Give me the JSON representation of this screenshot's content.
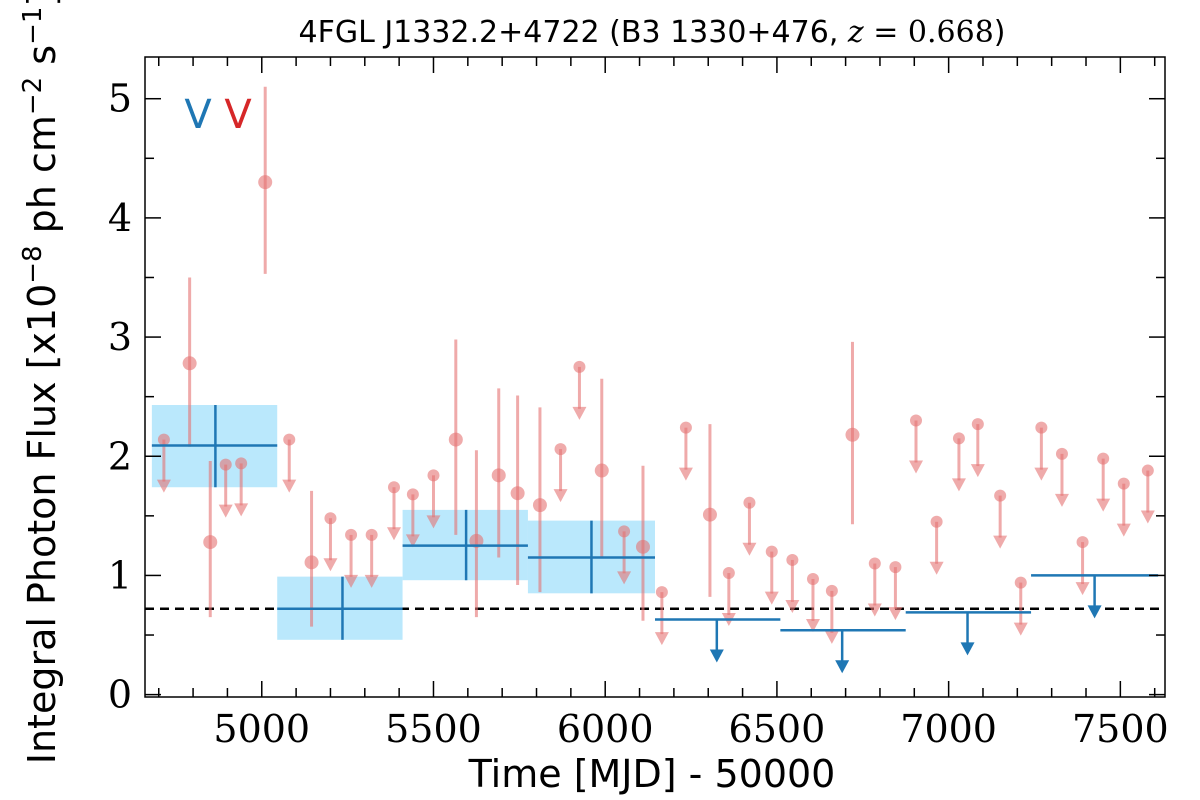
{
  "chart_data": {
    "type": "scatter",
    "title": "4FGL J1332.2+4722 (B3 1330+476, z = 0.668)",
    "title_parts": {
      "main": "4FGL J1332.2+4722 (B3 1330+476, ",
      "z_var": "z",
      "z_eq": " = 0.668",
      "close": ")"
    },
    "xlabel": "Time [MJD] - 50000",
    "ylabel": "Integral Photon Flux [x10",
    "ylabel_sup1": "−8",
    "ylabel_mid": " ph cm",
    "ylabel_sup2": "−2",
    "ylabel_end": " s",
    "ylabel_sup3": "−1",
    "ylabel_close": "]",
    "xlim": [
      4660,
      7630
    ],
    "ylim": [
      -0.02,
      5.35
    ],
    "xticks": [
      5000,
      5500,
      6000,
      6500,
      7000,
      7500
    ],
    "yticks": [
      0,
      1,
      2,
      3,
      4,
      5
    ],
    "grid": false,
    "legend": {
      "placement": "top-left",
      "entries": [
        {
          "label": "V",
          "color": "#1f77b4"
        },
        {
          "label": "V",
          "color": "#d62728"
        }
      ]
    },
    "reference_line": {
      "y": 0.72,
      "style": "dashed",
      "color": "#000000"
    },
    "colors": {
      "short_bin": "#e57373",
      "long_bin": "#1f77b4",
      "long_band": "#b3e5fc"
    },
    "series": [
      {
        "role": "short-bin detections",
        "points": [
          {
            "x": 4790,
            "y": 2.78,
            "yerr": [
              2.08,
              3.5
            ]
          },
          {
            "x": 4850,
            "y": 1.28,
            "yerr": [
              0.65,
              1.96
            ]
          },
          {
            "x": 5010,
            "y": 4.3,
            "yerr": [
              3.53,
              5.1
            ]
          },
          {
            "x": 5145,
            "y": 1.11,
            "yerr": [
              0.57,
              1.71
            ]
          },
          {
            "x": 5565,
            "y": 2.14,
            "yerr": [
              1.34,
              2.98
            ]
          },
          {
            "x": 5625,
            "y": 1.29,
            "yerr": [
              0.65,
              2.05
            ]
          },
          {
            "x": 5690,
            "y": 1.84,
            "yerr": [
              1.15,
              2.57
            ]
          },
          {
            "x": 5745,
            "y": 1.69,
            "yerr": [
              0.92,
              2.51
            ]
          },
          {
            "x": 5810,
            "y": 1.59,
            "yerr": [
              0.86,
              2.41
            ]
          },
          {
            "x": 5990,
            "y": 1.88,
            "yerr": [
              1.15,
              2.65
            ]
          },
          {
            "x": 6110,
            "y": 1.24,
            "yerr": [
              0.62,
              1.92
            ]
          },
          {
            "x": 6305,
            "y": 1.51,
            "yerr": [
              0.82,
              2.27
            ]
          },
          {
            "x": 6720,
            "y": 2.18,
            "yerr": [
              1.43,
              2.96
            ]
          }
        ]
      },
      {
        "role": "short-bin upper limits",
        "points": [
          {
            "x": 4715,
            "y": 2.14
          },
          {
            "x": 4895,
            "y": 1.93
          },
          {
            "x": 4940,
            "y": 1.94
          },
          {
            "x": 5080,
            "y": 2.14
          },
          {
            "x": 5200,
            "y": 1.48
          },
          {
            "x": 5260,
            "y": 1.34
          },
          {
            "x": 5320,
            "y": 1.34
          },
          {
            "x": 5385,
            "y": 1.74
          },
          {
            "x": 5440,
            "y": 1.68
          },
          {
            "x": 5500,
            "y": 1.84
          },
          {
            "x": 5870,
            "y": 2.06
          },
          {
            "x": 5925,
            "y": 2.75
          },
          {
            "x": 6055,
            "y": 1.37
          },
          {
            "x": 6165,
            "y": 0.86
          },
          {
            "x": 6235,
            "y": 2.24
          },
          {
            "x": 6360,
            "y": 1.02
          },
          {
            "x": 6420,
            "y": 1.61
          },
          {
            "x": 6485,
            "y": 1.2
          },
          {
            "x": 6545,
            "y": 1.13
          },
          {
            "x": 6605,
            "y": 0.97
          },
          {
            "x": 6660,
            "y": 0.87
          },
          {
            "x": 6785,
            "y": 1.1
          },
          {
            "x": 6845,
            "y": 1.07
          },
          {
            "x": 6905,
            "y": 2.3
          },
          {
            "x": 6965,
            "y": 1.45
          },
          {
            "x": 7030,
            "y": 2.15
          },
          {
            "x": 7085,
            "y": 2.27
          },
          {
            "x": 7150,
            "y": 1.67
          },
          {
            "x": 7210,
            "y": 0.94
          },
          {
            "x": 7270,
            "y": 2.24
          },
          {
            "x": 7330,
            "y": 2.02
          },
          {
            "x": 7390,
            "y": 1.28
          },
          {
            "x": 7450,
            "y": 1.98
          },
          {
            "x": 7510,
            "y": 1.77
          },
          {
            "x": 7580,
            "y": 1.88
          }
        ]
      },
      {
        "role": "long-bin detections",
        "points": [
          {
            "x": 4865,
            "xerr": [
              4680,
              5045
            ],
            "y": 2.09,
            "yerr": [
              1.74,
              2.43
            ]
          },
          {
            "x": 5235,
            "xerr": [
              5045,
              5410
            ],
            "y": 0.72,
            "yerr": [
              0.46,
              0.99
            ]
          },
          {
            "x": 5595,
            "xerr": [
              5410,
              5775
            ],
            "y": 1.25,
            "yerr": [
              0.96,
              1.55
            ]
          },
          {
            "x": 5960,
            "xerr": [
              5775,
              6145
            ],
            "y": 1.15,
            "yerr": [
              0.85,
              1.46
            ]
          }
        ]
      },
      {
        "role": "long-bin upper limits",
        "points": [
          {
            "x": 6325,
            "xerr": [
              6145,
              6510
            ],
            "y": 0.63
          },
          {
            "x": 6690,
            "xerr": [
              6510,
              6875
            ],
            "y": 0.54
          },
          {
            "x": 7055,
            "xerr": [
              6875,
              7240
            ],
            "y": 0.69
          },
          {
            "x": 7425,
            "xerr": [
              7240,
              7610
            ],
            "y": 1.0
          }
        ]
      }
    ]
  }
}
